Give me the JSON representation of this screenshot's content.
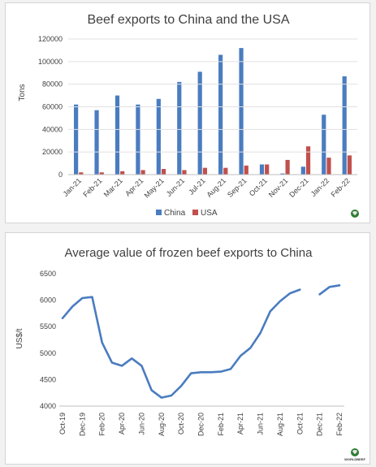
{
  "chart_data": [
    {
      "type": "bar",
      "title": "Beef exports to China and the USA",
      "xlabel": "",
      "ylabel": "Tons",
      "ylim": [
        0,
        120000
      ],
      "yticks": [
        0,
        20000,
        40000,
        60000,
        80000,
        100000,
        120000
      ],
      "grid": true,
      "legend_position": "bottom",
      "categories": [
        "Jan-21",
        "Feb-21",
        "Mar-21",
        "Apr-21",
        "May-21",
        "Jun-21",
        "Jul-21",
        "Aug-21",
        "Sep-21",
        "Oct-21",
        "Nov-21",
        "Dec-21",
        "Jan-22",
        "Feb-22"
      ],
      "series": [
        {
          "name": "China",
          "color": "#4a7cc0",
          "values": [
            62000,
            57000,
            70000,
            62000,
            67000,
            82000,
            91000,
            106000,
            112000,
            9000,
            1000,
            7000,
            53000,
            87000
          ]
        },
        {
          "name": "USA",
          "color": "#c0504d",
          "values": [
            2000,
            2000,
            3000,
            4000,
            5000,
            4000,
            6000,
            6000,
            8000,
            9000,
            13000,
            25000,
            15000,
            17000
          ]
        }
      ]
    },
    {
      "type": "line",
      "title": "Average value of frozen beef exports to China",
      "xlabel": "",
      "ylabel": "US$/t",
      "ylim": [
        4000,
        6500
      ],
      "yticks": [
        4000,
        4500,
        5000,
        5500,
        6000,
        6500
      ],
      "grid": false,
      "tick_labels": [
        "Oct-19",
        "Dec-19",
        "Feb-20",
        "Apr-20",
        "Jun-20",
        "Aug-20",
        "Oct-20",
        "Dec-20",
        "Feb-21",
        "Apr-21",
        "Jun-21",
        "Aug-21",
        "Oct-21",
        "Dec-21",
        "Feb-22"
      ],
      "series": [
        {
          "color": "#4a7cc0",
          "segments": [
            {
              "x": [
                "Oct-19",
                "Nov-19",
                "Dec-19",
                "Jan-20",
                "Feb-20",
                "Mar-20",
                "Apr-20",
                "May-20",
                "Jun-20",
                "Jul-20",
                "Aug-20",
                "Sep-20",
                "Oct-20",
                "Nov-20",
                "Dec-20",
                "Jan-21",
                "Feb-21",
                "Mar-21",
                "Apr-21",
                "May-21",
                "Jun-21",
                "Jul-21",
                "Aug-21",
                "Sep-21",
                "Oct-21"
              ],
              "values": [
                5660,
                5880,
                6040,
                6060,
                5200,
                4820,
                4760,
                4900,
                4760,
                4300,
                4160,
                4200,
                4380,
                4620,
                4640,
                4640,
                4650,
                4700,
                4950,
                5100,
                5380,
                5790,
                5980,
                6130,
                6200
              ]
            },
            {
              "x": [
                "Dec-21",
                "Jan-22",
                "Feb-22"
              ],
              "values": [
                6110,
                6250,
                6280
              ]
            }
          ]
        }
      ]
    }
  ],
  "branding": {
    "logo_text": "WORLDBEEF"
  }
}
